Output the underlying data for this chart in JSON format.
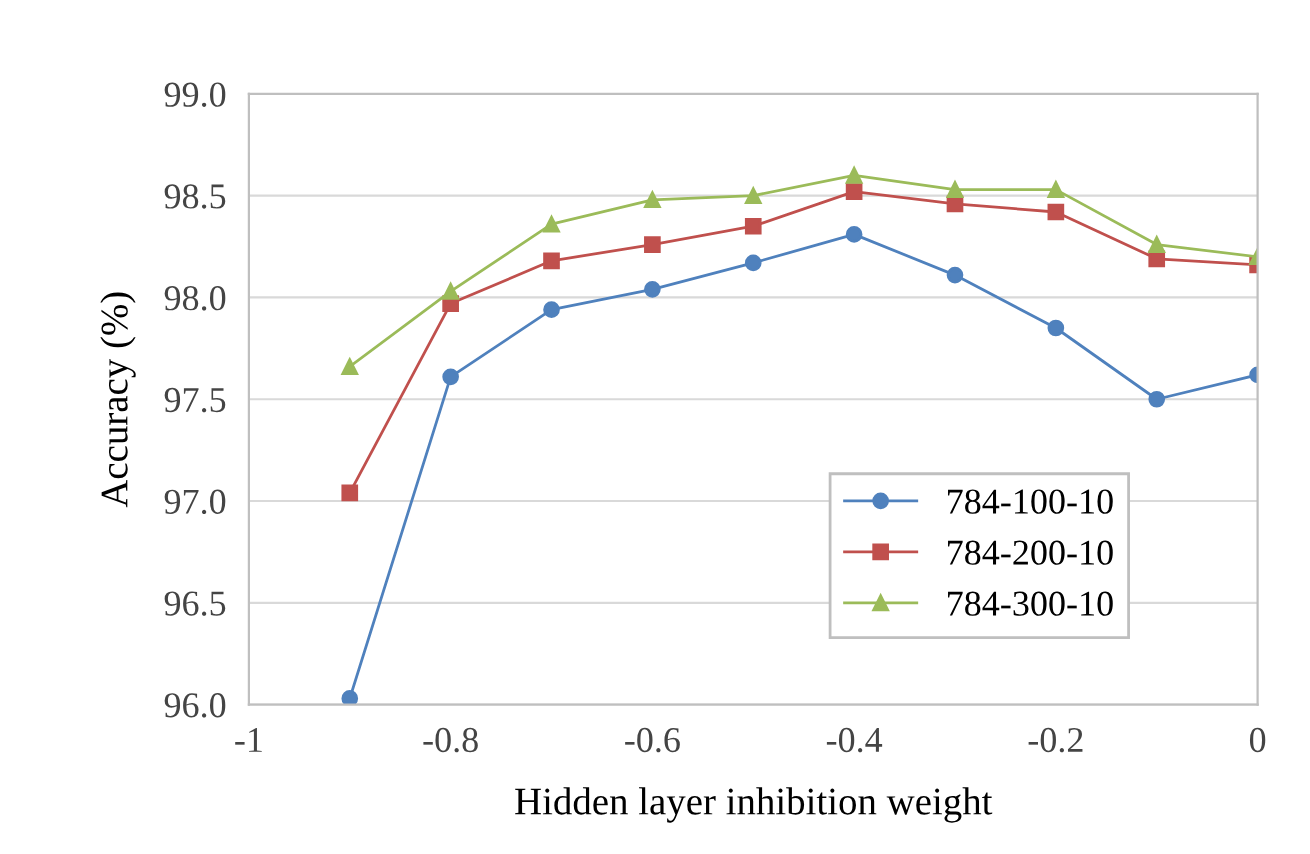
{
  "chart_data": {
    "type": "line",
    "xlabel": "Hidden layer inhibition weight",
    "ylabel": "Accuracy (%)",
    "x": [
      -0.9,
      -0.8,
      -0.7,
      -0.6,
      -0.5,
      -0.4,
      -0.3,
      -0.2,
      -0.1,
      0
    ],
    "series": [
      {
        "name": "784-100-10",
        "color": "#4f81bd",
        "marker": "circle",
        "values": [
          96.03,
          97.61,
          97.94,
          98.04,
          98.17,
          98.31,
          98.11,
          97.85,
          97.5,
          97.62
        ]
      },
      {
        "name": "784-200-10",
        "color": "#c0504d",
        "marker": "square",
        "values": [
          97.04,
          97.97,
          98.18,
          98.26,
          98.35,
          98.52,
          98.46,
          98.42,
          98.19,
          98.16
        ]
      },
      {
        "name": "784-300-10",
        "color": "#9bbb59",
        "marker": "triangle",
        "values": [
          97.66,
          98.03,
          98.36,
          98.48,
          98.5,
          98.6,
          98.53,
          98.53,
          98.26,
          98.2
        ]
      }
    ],
    "xlim": [
      -1,
      0
    ],
    "xticks": [
      {
        "value": -1,
        "label": "-1"
      },
      {
        "value": -0.8,
        "label": "-0.8"
      },
      {
        "value": -0.6,
        "label": "-0.6"
      },
      {
        "value": -0.4,
        "label": "-0.4"
      },
      {
        "value": -0.2,
        "label": "-0.2"
      },
      {
        "value": 0,
        "label": "0"
      }
    ],
    "ylim": [
      96.0,
      99.0
    ],
    "yticks": [
      {
        "value": 96.0,
        "label": "96.0"
      },
      {
        "value": 96.5,
        "label": "96.5"
      },
      {
        "value": 97.0,
        "label": "97.0"
      },
      {
        "value": 97.5,
        "label": "97.5"
      },
      {
        "value": 98.0,
        "label": "98.0"
      },
      {
        "value": 98.5,
        "label": "98.5"
      },
      {
        "value": 99.0,
        "label": "99.0"
      }
    ],
    "grid": "y",
    "legend": "bottom right",
    "line_style": "solid"
  }
}
